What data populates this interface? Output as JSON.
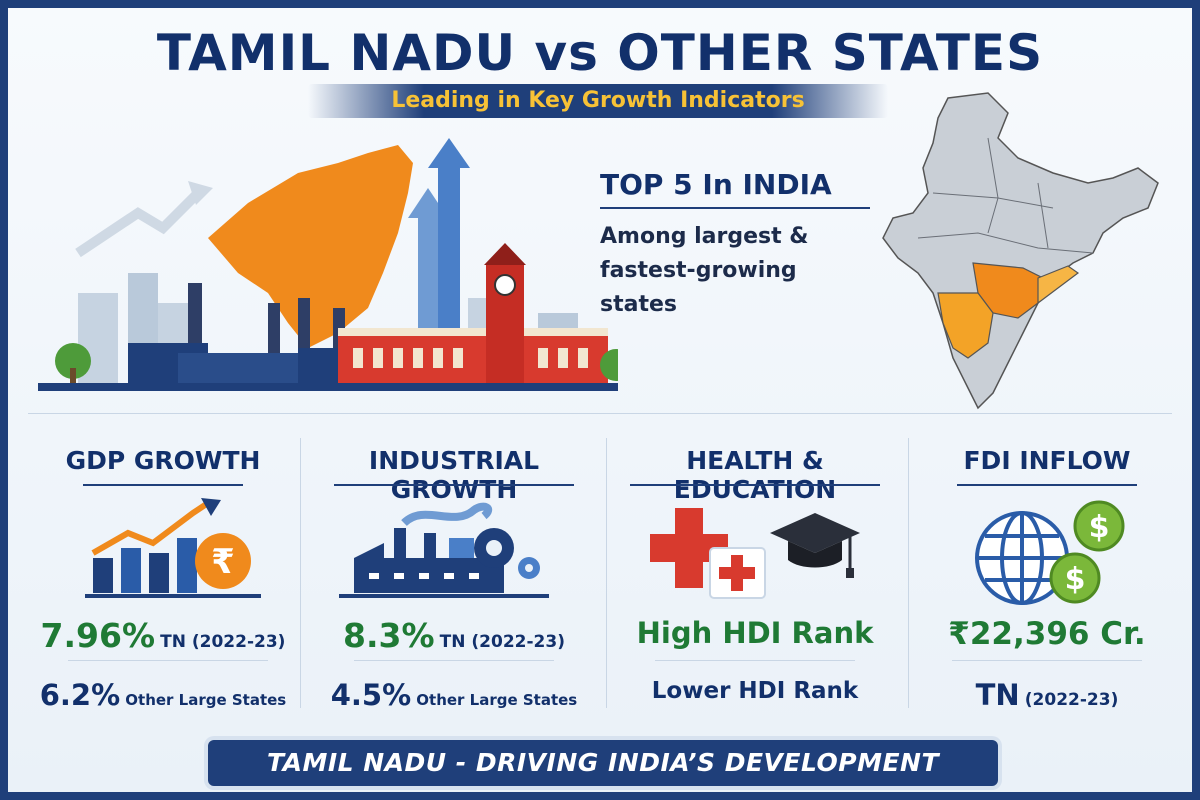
{
  "header": {
    "title": "TAMIL NADU vs OTHER STATES",
    "subtitle": "Leading in Key Growth Indicators"
  },
  "hero": {
    "rank_title": "TOP 5 In INDIA",
    "rank_desc_line1": "Among largest &",
    "rank_desc_line2": "fastest-growing states"
  },
  "cards": [
    {
      "title": "GDP GROWTH",
      "main_value": "7.96%",
      "main_suffix": "TN (2022-23)",
      "sub_value": "6.2%",
      "sub_suffix": "Other Large States",
      "icon": "rupee-growth-chart-icon"
    },
    {
      "title": "INDUSTRIAL GROWTH",
      "main_value": "8.3%",
      "main_suffix": "TN (2022-23)",
      "sub_value": "4.5%",
      "sub_suffix": "Other Large States",
      "icon": "factory-gear-icon"
    },
    {
      "title": "HEALTH & EDUCATION",
      "main_value": "High HDI Rank",
      "sub_value": "Lower HDI Rank",
      "icon": "health-education-icon"
    },
    {
      "title": "FDI INFLOW",
      "main_value": "₹22,396 Cr.",
      "sub_value": "TN",
      "sub_suffix": "(2022-23)",
      "icon": "globe-dollar-icon"
    }
  ],
  "footer": {
    "tagline": "TAMIL NADU - DRIVING INDIA’S DEVELOPMENT"
  },
  "colors": {
    "navy": "#12306b",
    "accent_gold": "#f7c236",
    "green": "#1f7a35",
    "orange": "#f08a1c"
  }
}
